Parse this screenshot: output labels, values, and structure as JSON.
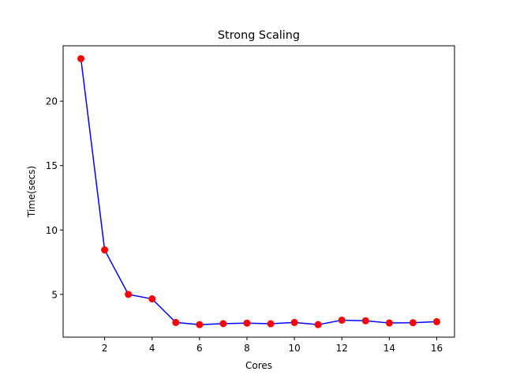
{
  "chart_data": {
    "type": "line",
    "title": "Strong Scaling",
    "xlabel": "Cores",
    "ylabel": "Time(secs)",
    "x": [
      1,
      2,
      3,
      4,
      5,
      6,
      7,
      8,
      9,
      10,
      11,
      12,
      13,
      14,
      15,
      16
    ],
    "series": [
      {
        "values": [
          23.3,
          8.45,
          5.0,
          4.65,
          2.82,
          2.65,
          2.73,
          2.77,
          2.72,
          2.82,
          2.65,
          3.0,
          2.95,
          2.78,
          2.8,
          2.88
        ],
        "line_color": "#0000ff",
        "marker_color": "#ff0000",
        "marker": "circle"
      }
    ],
    "xlim": [
      0.25,
      16.75
    ],
    "ylim": [
      1.68,
      24.3
    ],
    "xticks": [
      2,
      4,
      6,
      8,
      10,
      12,
      14,
      16
    ],
    "yticks": [
      5,
      10,
      15,
      20
    ],
    "grid": false,
    "legend": false
  }
}
